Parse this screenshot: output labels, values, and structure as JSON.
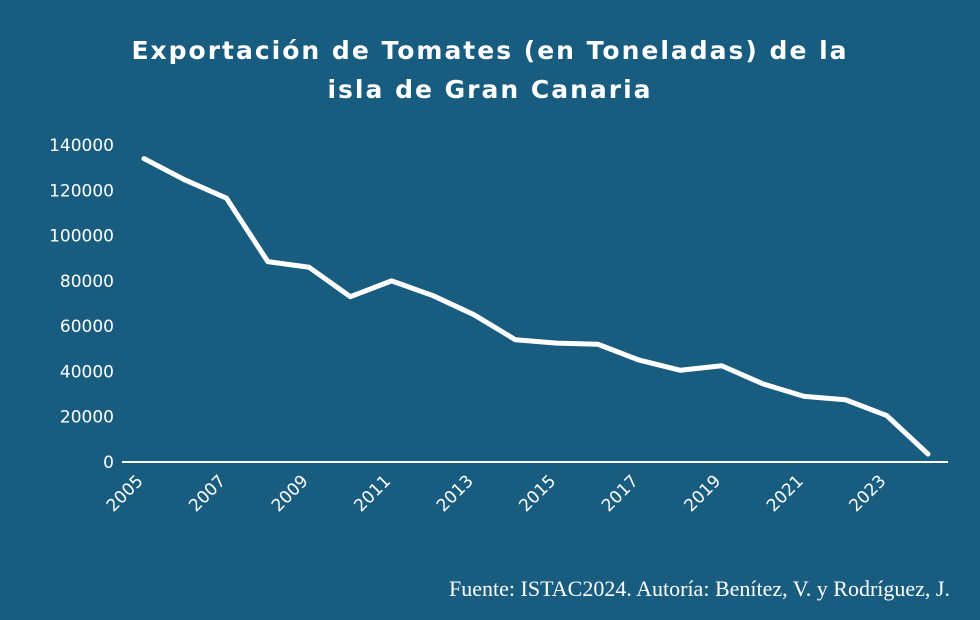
{
  "colors": {
    "background": "#185c80",
    "line": "#ffffff",
    "text": "#ffffff"
  },
  "chart_data": {
    "type": "line",
    "title_lines": [
      "Exportación de Tomates (en Toneladas) de la",
      "isla de Gran Canaria"
    ],
    "xlabel": "",
    "ylabel": "",
    "x": [
      2005,
      2006,
      2007,
      2008,
      2009,
      2010,
      2011,
      2012,
      2013,
      2014,
      2015,
      2016,
      2017,
      2018,
      2019,
      2020,
      2021,
      2022,
      2023,
      2024
    ],
    "series": [
      {
        "name": "Exportación de Tomates",
        "values": [
          134000,
          124500,
          116500,
          88500,
          86000,
          73000,
          80000,
          73500,
          65000,
          54000,
          52500,
          52000,
          45000,
          40500,
          42500,
          34500,
          29000,
          27500,
          20500,
          3500
        ]
      }
    ],
    "xlim": [
      2005,
      2024
    ],
    "ylim": [
      0,
      140000
    ],
    "x_ticks": [
      "2005",
      "2007",
      "2009",
      "2011",
      "2013",
      "2015",
      "2017",
      "2019",
      "2021",
      "2023"
    ],
    "y_ticks": [
      "0",
      "20000",
      "40000",
      "60000",
      "80000",
      "100000",
      "120000",
      "140000"
    ],
    "grid": false,
    "legend": "none"
  },
  "source": "Fuente: ISTAC2024. Autoría: Benítez, V. y Rodríguez, J."
}
